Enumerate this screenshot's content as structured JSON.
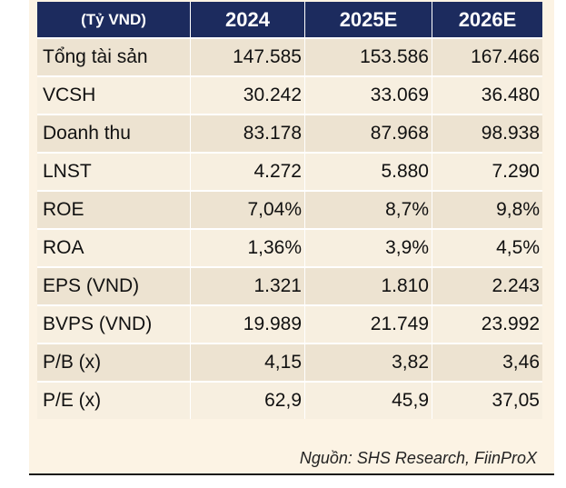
{
  "table": {
    "headers": [
      "(Tỷ VND)",
      "2024",
      "2025E",
      "2026E"
    ],
    "rows": [
      {
        "label": "Tổng tài sản",
        "values": [
          "147.585",
          "153.586",
          "167.466"
        ]
      },
      {
        "label": "VCSH",
        "values": [
          "30.242",
          "33.069",
          "36.480"
        ]
      },
      {
        "label": "Doanh thu",
        "values": [
          "83.178",
          "87.968",
          "98.938"
        ]
      },
      {
        "label": "LNST",
        "values": [
          "4.272",
          "5.880",
          "7.290"
        ]
      },
      {
        "label": "ROE",
        "values": [
          "7,04%",
          "8,7%",
          "9,8%"
        ]
      },
      {
        "label": "ROA",
        "values": [
          "1,36%",
          "3,9%",
          "4,5%"
        ]
      },
      {
        "label": "EPS (VND)",
        "values": [
          "1.321",
          "1.810",
          "2.243"
        ]
      },
      {
        "label": "BVPS (VND)",
        "values": [
          "19.989",
          "21.749",
          "23.992"
        ]
      },
      {
        "label": "P/B (x)",
        "values": [
          "4,15",
          "3,82",
          "3,46"
        ]
      },
      {
        "label": "P/E (x)",
        "values": [
          "62,9",
          "45,9",
          "37,05"
        ]
      }
    ]
  },
  "source": "Nguồn: SHS Research, FiinProX",
  "colors": {
    "header_bg": "#1c2b5e",
    "panel_bg": "#fcf3e4",
    "row_shade": "#ede3d1",
    "row_plain": "#f7efe0"
  }
}
